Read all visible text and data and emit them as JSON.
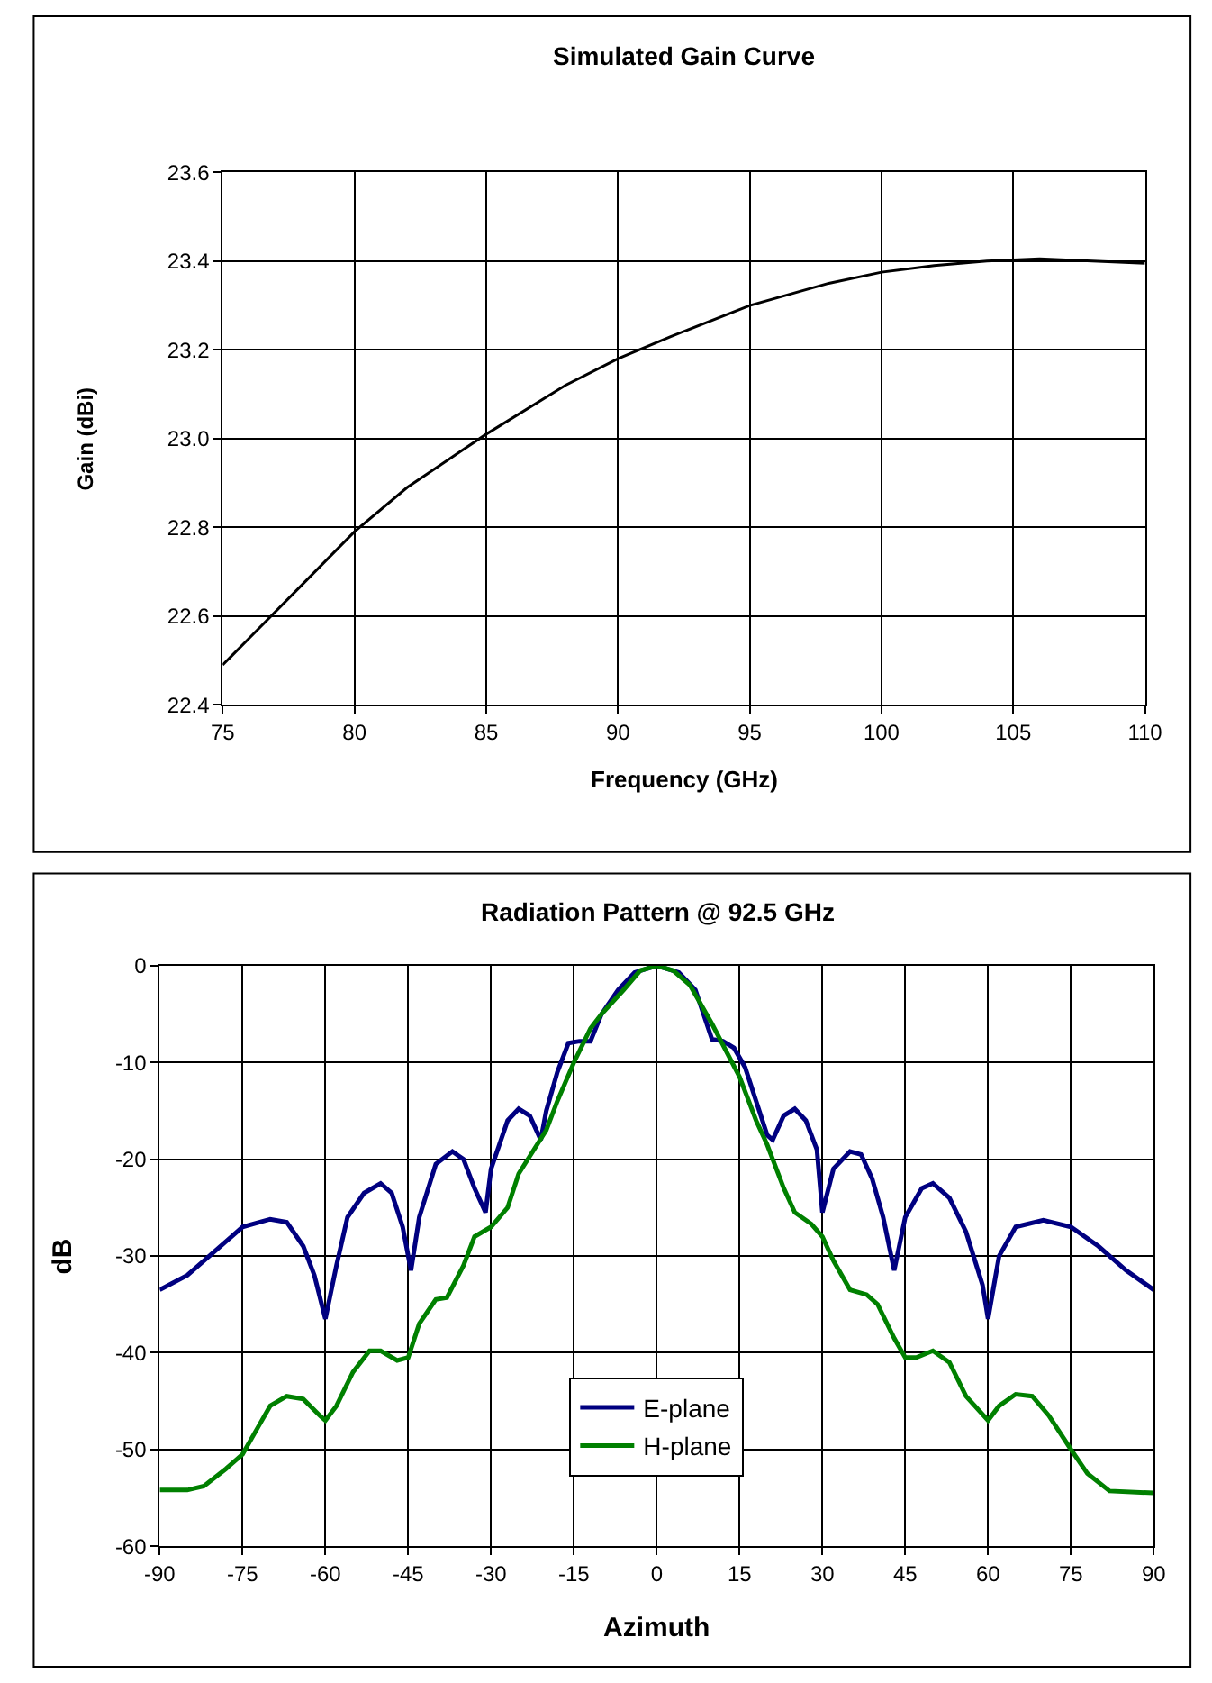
{
  "chart_data": [
    {
      "type": "line",
      "title": "Simulated Gain Curve",
      "xlabel": "Frequency (GHz)",
      "ylabel": "Gain (dBi)",
      "x": [
        75,
        76,
        78,
        80,
        82,
        84,
        85,
        88,
        90,
        92,
        95,
        98,
        100,
        102,
        104,
        106,
        108,
        110
      ],
      "series": [
        {
          "color": "#000000",
          "values": [
            22.49,
            22.55,
            22.67,
            22.79,
            22.89,
            22.97,
            23.01,
            23.12,
            23.18,
            23.23,
            23.3,
            23.35,
            23.375,
            23.39,
            23.4,
            23.405,
            23.4,
            23.395
          ]
        }
      ],
      "xlim": [
        75,
        110
      ],
      "xticks": [
        75,
        80,
        85,
        90,
        95,
        100,
        105,
        110
      ],
      "ylim": [
        22.4,
        23.6
      ],
      "yticks": [
        {
          "value": 22.4,
          "label": "22.4"
        },
        {
          "value": 22.6,
          "label": "22.6"
        },
        {
          "value": 22.8,
          "label": "22.8"
        },
        {
          "value": 23.0,
          "label": "23.0"
        },
        {
          "value": 23.2,
          "label": "23.2"
        },
        {
          "value": 23.4,
          "label": "23.4"
        },
        {
          "value": 23.6,
          "label": "23.6"
        }
      ],
      "grid": true,
      "legend": false
    },
    {
      "type": "line",
      "title": "Radiation Pattern @ 92.5 GHz",
      "xlabel": "Azimuth",
      "ylabel": "dB",
      "series": [
        {
          "name": "E-plane",
          "color": "#000080",
          "x": [
            -90,
            -85,
            -80,
            -75,
            -70,
            -67,
            -64,
            -62,
            -60,
            -58,
            -56,
            -53,
            -50,
            -48,
            -46,
            -44.5,
            -43,
            -40,
            -37,
            -35,
            -33,
            -31,
            -30,
            -27,
            -25,
            -23,
            -21,
            -20,
            -18,
            -16,
            -14,
            -12,
            -10,
            -7,
            -4,
            0,
            4,
            7,
            10,
            12,
            14,
            16,
            18,
            20,
            21,
            23,
            25,
            27,
            29,
            30,
            32,
            35,
            37,
            39,
            41,
            43,
            45,
            48,
            50,
            53,
            56,
            59,
            60,
            62,
            65,
            70,
            75,
            80,
            85,
            90
          ],
          "values": [
            -33.5,
            -32,
            -29.5,
            -27,
            -26.2,
            -26.5,
            -29,
            -32,
            -36.5,
            -31,
            -26,
            -23.5,
            -22.5,
            -23.5,
            -27,
            -31.5,
            -26,
            -20.5,
            -19.2,
            -20,
            -23,
            -25.5,
            -21,
            -16,
            -14.8,
            -15.5,
            -18,
            -15,
            -11,
            -8,
            -7.8,
            -7.8,
            -5,
            -2.5,
            -0.7,
            0,
            -0.7,
            -2.5,
            -7.6,
            -7.8,
            -8.5,
            -10.5,
            -14,
            -17.5,
            -18,
            -15.5,
            -14.8,
            -16,
            -19,
            -25.5,
            -21,
            -19.2,
            -19.5,
            -22,
            -26,
            -31.5,
            -26,
            -23,
            -22.5,
            -24,
            -27.5,
            -33,
            -36.5,
            -30,
            -27,
            -26.3,
            -27,
            -29,
            -31.5,
            -33.5
          ]
        },
        {
          "name": "H-plane",
          "color": "#008000",
          "x": [
            -90,
            -85,
            -82,
            -78,
            -75,
            -72,
            -70,
            -67,
            -64,
            -61,
            -60,
            -58,
            -55,
            -52,
            -50,
            -47,
            -45,
            -43,
            -40,
            -38,
            -35,
            -33,
            -30,
            -27,
            -25,
            -20,
            -18,
            -15,
            -12,
            -10,
            -6,
            -3,
            0,
            3,
            6,
            10,
            15,
            18,
            20,
            23,
            25,
            28,
            30,
            32,
            35,
            38,
            40,
            43,
            45,
            47,
            50,
            53,
            56,
            60,
            62,
            65,
            68,
            71,
            75,
            78,
            82,
            90
          ],
          "values": [
            -54.2,
            -54.2,
            -53.8,
            -52,
            -50.5,
            -47.5,
            -45.5,
            -44.5,
            -44.8,
            -46.5,
            -47,
            -45.5,
            -42,
            -39.8,
            -39.8,
            -40.8,
            -40.5,
            -37,
            -34.5,
            -34.3,
            -31,
            -28,
            -27,
            -25,
            -21.5,
            -17,
            -14,
            -10,
            -6.5,
            -5,
            -2.5,
            -0.5,
            0,
            -0.5,
            -2,
            -6,
            -11.5,
            -16,
            -18.5,
            -23,
            -25.5,
            -26.7,
            -28,
            -30.5,
            -33.5,
            -34,
            -35,
            -38.5,
            -40.5,
            -40.5,
            -39.8,
            -41,
            -44.5,
            -47,
            -45.5,
            -44.3,
            -44.5,
            -46.5,
            -50,
            -52.5,
            -54.3,
            -54.5
          ]
        }
      ],
      "xlim": [
        -90,
        90
      ],
      "xticks": [
        -90,
        -75,
        -60,
        -45,
        -30,
        -15,
        0,
        15,
        30,
        45,
        60,
        75,
        90
      ],
      "ylim": [
        -60,
        0
      ],
      "yticks": [
        -60,
        -50,
        -40,
        -30,
        -20,
        -10,
        0
      ],
      "grid": true,
      "legend": "bottom"
    }
  ]
}
